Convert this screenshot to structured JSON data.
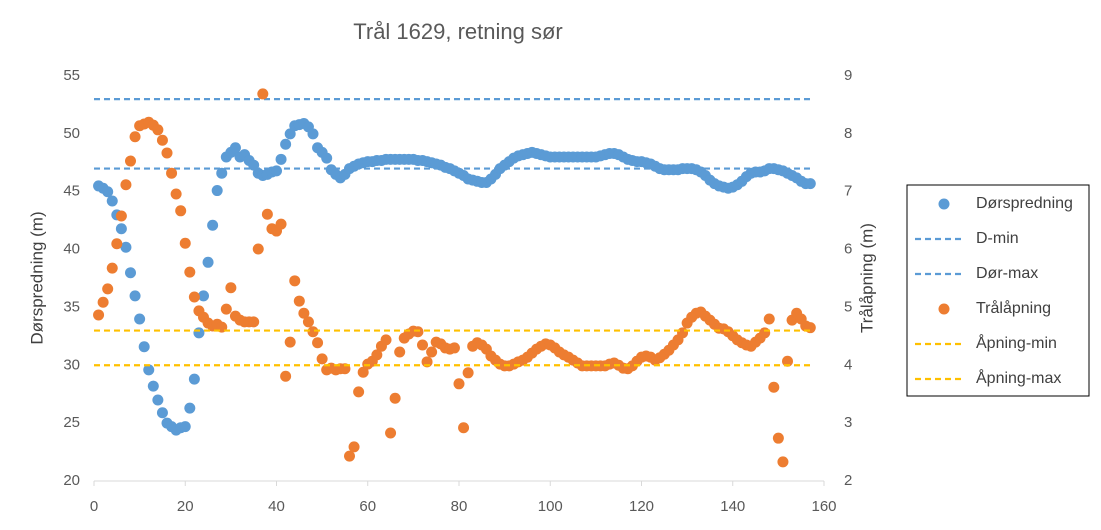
{
  "chart_data": {
    "type": "scatter",
    "title": "Trål 1629, retning sør",
    "ylabel": "Dørspredning (m)",
    "y2label": "Trålåpning (m)",
    "xlim": [
      0,
      160
    ],
    "xticks": [
      0,
      20,
      40,
      60,
      80,
      100,
      120,
      140,
      160
    ],
    "ylim": [
      20,
      55
    ],
    "yticks": [
      20,
      25,
      30,
      35,
      40,
      45,
      50,
      55
    ],
    "y2lim": [
      2,
      9
    ],
    "y2ticks": [
      2,
      3,
      4,
      5,
      6,
      7,
      8,
      9
    ],
    "legend": "right",
    "x": [
      1,
      2,
      3,
      4,
      5,
      6,
      7,
      8,
      9,
      10,
      11,
      12,
      13,
      14,
      15,
      16,
      17,
      18,
      19,
      20,
      21,
      22,
      23,
      24,
      25,
      26,
      27,
      28,
      29,
      30,
      31,
      32,
      33,
      34,
      35,
      36,
      37,
      38,
      39,
      40,
      41,
      42,
      43,
      44,
      45,
      46,
      47,
      48,
      49,
      50,
      51,
      52,
      53,
      54,
      55,
      56,
      57,
      58,
      59,
      60,
      61,
      62,
      63,
      64,
      65,
      66,
      67,
      68,
      69,
      70,
      71,
      72,
      73,
      74,
      75,
      76,
      77,
      78,
      79,
      80,
      81,
      82,
      83,
      84,
      85,
      86,
      87,
      88,
      89,
      90,
      91,
      92,
      93,
      94,
      95,
      96,
      97,
      98,
      99,
      100,
      101,
      102,
      103,
      104,
      105,
      106,
      107,
      108,
      109,
      110,
      111,
      112,
      113,
      114,
      115,
      116,
      117,
      118,
      119,
      120,
      121,
      122,
      123,
      124,
      125,
      126,
      127,
      128,
      129,
      130,
      131,
      132,
      133,
      134,
      135,
      136,
      137,
      138,
      139,
      140,
      141,
      142,
      143,
      144,
      145,
      146,
      147,
      148,
      149,
      150,
      151,
      152,
      153,
      154,
      155,
      156,
      157
    ],
    "series": [
      {
        "name": "Dørspredning",
        "color": "#5b9bd5",
        "mode": "markers",
        "values": [
          45.5,
          45.3,
          45.0,
          44.2,
          43.0,
          41.8,
          40.2,
          38.0,
          36.0,
          34.0,
          31.6,
          29.6,
          28.2,
          27.0,
          25.9,
          25.0,
          24.7,
          24.4,
          24.6,
          24.7,
          26.3,
          28.8,
          32.8,
          36.0,
          38.9,
          42.1,
          45.1,
          46.6,
          48.0,
          48.4,
          48.8,
          48.0,
          48.2,
          47.7,
          47.3,
          46.6,
          46.4,
          46.5,
          46.7,
          46.8,
          47.8,
          49.1,
          50.0,
          50.7,
          50.8,
          50.9,
          50.6,
          50.0,
          48.8,
          48.4,
          47.9,
          46.9,
          46.5,
          46.2,
          46.5,
          47.0,
          47.2,
          47.4,
          47.5,
          47.6,
          47.6,
          47.7,
          47.7,
          47.8,
          47.8,
          47.8,
          47.8,
          47.8,
          47.8,
          47.8,
          47.7,
          47.7,
          47.6,
          47.5,
          47.4,
          47.3,
          47.1,
          47.0,
          46.8,
          46.6,
          46.4,
          46.1,
          46.0,
          45.9,
          45.8,
          45.8,
          46.1,
          46.5,
          47.0,
          47.3,
          47.6,
          47.9,
          48.1,
          48.2,
          48.3,
          48.4,
          48.3,
          48.2,
          48.1,
          48.0,
          48.0,
          48.0,
          48.0,
          48.0,
          48.0,
          48.0,
          48.0,
          48.0,
          48.0,
          48.0,
          48.1,
          48.2,
          48.3,
          48.3,
          48.2,
          48.0,
          47.8,
          47.7,
          47.6,
          47.6,
          47.5,
          47.4,
          47.2,
          47.0,
          46.9,
          46.9,
          46.9,
          46.9,
          47.0,
          47.0,
          47.0,
          46.9,
          46.7,
          46.4,
          46.0,
          45.7,
          45.5,
          45.4,
          45.3,
          45.4,
          45.6,
          45.9,
          46.3,
          46.6,
          46.7,
          46.7,
          46.8,
          47.0,
          47.0,
          46.9,
          46.8,
          46.6,
          46.4,
          46.2,
          45.9,
          45.7,
          45.7
        ]
      },
      {
        "name": "D-min",
        "color": "#5b9bd5",
        "mode": "dashed",
        "x": [
          0,
          157
        ],
        "values": [
          47,
          47
        ]
      },
      {
        "name": "Dør-max",
        "color": "#5b9bd5",
        "mode": "dashed",
        "x": [
          0,
          157
        ],
        "values": [
          53,
          53
        ]
      },
      {
        "name": "Trålåpning",
        "color": "#ed7d31",
        "mode": "markers",
        "axis": "y2",
        "values": [
          4.87,
          5.09,
          5.32,
          5.68,
          6.1,
          6.58,
          7.12,
          7.53,
          7.95,
          8.14,
          8.17,
          8.2,
          8.15,
          8.07,
          7.89,
          7.67,
          7.32,
          6.96,
          6.67,
          6.11,
          5.61,
          5.18,
          4.94,
          4.83,
          4.73,
          4.68,
          4.71,
          4.66,
          4.97,
          5.34,
          4.85,
          4.78,
          4.75,
          4.75,
          4.75,
          6.01,
          8.69,
          6.61,
          6.36,
          6.32,
          6.44,
          3.81,
          4.4,
          5.46,
          5.11,
          4.9,
          4.75,
          4.58,
          4.39,
          4.11,
          3.92,
          3.95,
          3.92,
          3.94,
          3.94,
          2.43,
          2.59,
          3.54,
          3.88,
          4.02,
          4.07,
          4.18,
          4.33,
          4.44,
          2.83,
          3.43,
          4.23,
          4.47,
          4.54,
          4.59,
          4.58,
          4.35,
          4.06,
          4.23,
          4.4,
          4.37,
          4.3,
          4.28,
          4.3,
          3.68,
          2.92,
          3.87,
          4.33,
          4.39,
          4.35,
          4.28,
          4.16,
          4.09,
          4.02,
          3.99,
          3.99,
          4.02,
          4.06,
          4.09,
          4.14,
          4.21,
          4.28,
          4.33,
          4.37,
          4.35,
          4.3,
          4.23,
          4.18,
          4.14,
          4.09,
          4.04,
          3.99,
          3.99,
          3.99,
          3.99,
          3.99,
          3.99,
          4.02,
          4.04,
          4.0,
          3.95,
          3.94,
          3.99,
          4.07,
          4.14,
          4.16,
          4.14,
          4.09,
          4.13,
          4.19,
          4.26,
          4.35,
          4.44,
          4.56,
          4.73,
          4.83,
          4.9,
          4.92,
          4.85,
          4.78,
          4.71,
          4.64,
          4.63,
          4.58,
          4.51,
          4.44,
          4.39,
          4.35,
          4.33,
          4.4,
          4.47,
          4.56,
          4.8,
          3.62,
          2.74,
          2.33,
          4.07,
          4.78,
          4.9,
          4.8,
          4.68,
          4.65
        ]
      },
      {
        "name": "Åpning-min",
        "color": "#ffc000",
        "mode": "dashed",
        "axis": "y2",
        "x": [
          0,
          157
        ],
        "values": [
          4.0,
          4.0
        ]
      },
      {
        "name": "Åpning-max",
        "color": "#ffc000",
        "mode": "dashed",
        "axis": "y2",
        "x": [
          0,
          157
        ],
        "values": [
          4.6,
          4.6
        ]
      }
    ]
  }
}
